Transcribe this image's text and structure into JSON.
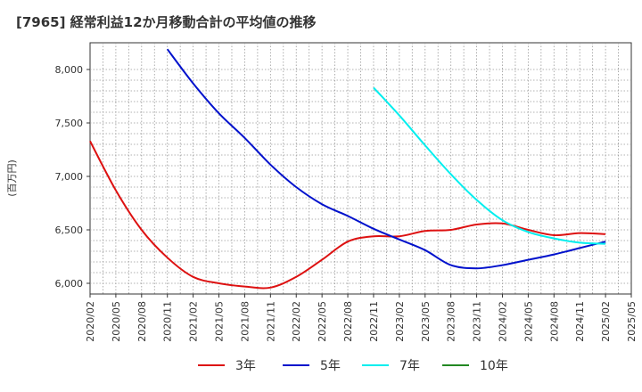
{
  "chart_data": {
    "type": "line",
    "title": "[7965]  経常利益12か月移動合計の平均値の推移",
    "ylabel": "(百万円)",
    "xlabel": "",
    "ylim": [
      5900,
      8250
    ],
    "yticks": [
      6000,
      6500,
      7000,
      7500,
      8000
    ],
    "ytick_labels": [
      "6,000",
      "6,500",
      "7,000",
      "7,500",
      "8,000"
    ],
    "x_categories": [
      "2020/02",
      "2020/05",
      "2020/08",
      "2020/11",
      "2021/02",
      "2021/05",
      "2021/08",
      "2021/11",
      "2022/02",
      "2022/05",
      "2022/08",
      "2022/11",
      "2023/02",
      "2023/05",
      "2023/08",
      "2023/11",
      "2024/02",
      "2024/05",
      "2024/08",
      "2024/11",
      "2025/02",
      "2025/05"
    ],
    "grid": true,
    "legend_position": "bottom",
    "series": [
      {
        "name": "3年",
        "color": "#dd1111",
        "x": [
          "2020/02",
          "2020/05",
          "2020/08",
          "2020/11",
          "2021/02",
          "2021/05",
          "2021/08",
          "2021/11",
          "2022/02",
          "2022/05",
          "2022/08",
          "2022/11",
          "2023/02",
          "2023/05",
          "2023/08",
          "2023/11",
          "2024/02",
          "2024/05",
          "2024/08",
          "2024/11",
          "2025/02"
        ],
        "values": [
          7330,
          6870,
          6500,
          6240,
          6060,
          6000,
          5970,
          5960,
          6060,
          6220,
          6390,
          6440,
          6440,
          6490,
          6500,
          6550,
          6560,
          6500,
          6450,
          6470,
          6460
        ]
      },
      {
        "name": "5年",
        "color": "#0011cc",
        "x": [
          "2020/11",
          "2021/02",
          "2021/05",
          "2021/08",
          "2021/11",
          "2022/02",
          "2022/05",
          "2022/08",
          "2022/11",
          "2023/02",
          "2023/05",
          "2023/08",
          "2023/11",
          "2024/02",
          "2024/05",
          "2024/08",
          "2024/11",
          "2025/02"
        ],
        "values": [
          8190,
          7870,
          7590,
          7360,
          7110,
          6900,
          6740,
          6630,
          6510,
          6410,
          6310,
          6170,
          6140,
          6170,
          6220,
          6270,
          6330,
          6390
        ]
      },
      {
        "name": "7年",
        "color": "#00eeee",
        "x": [
          "2022/11",
          "2023/02",
          "2023/05",
          "2023/08",
          "2023/11",
          "2024/02",
          "2024/05",
          "2024/08",
          "2024/11",
          "2025/02"
        ],
        "values": [
          7830,
          7570,
          7290,
          7020,
          6780,
          6590,
          6480,
          6420,
          6380,
          6370
        ]
      },
      {
        "name": "10年",
        "color": "#228822",
        "x": [],
        "values": []
      }
    ]
  }
}
